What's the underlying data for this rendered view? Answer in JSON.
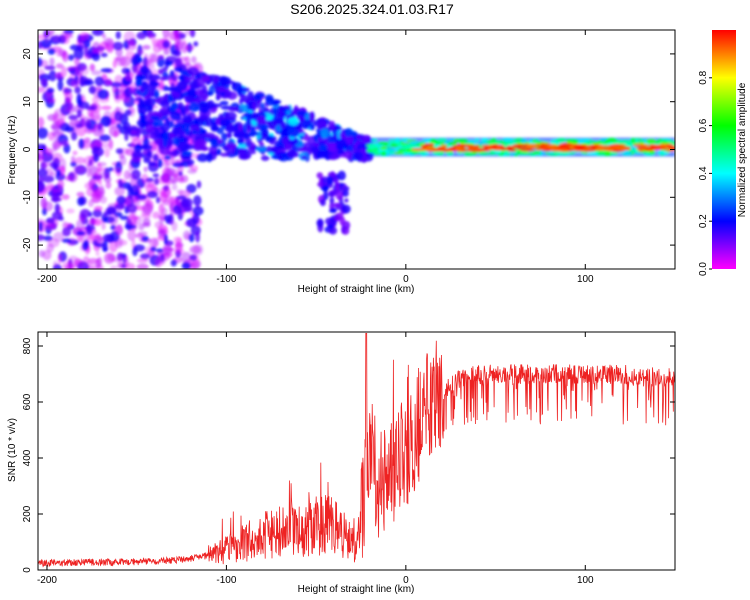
{
  "title": "S206.2025.324.01.03.R17",
  "chart_data": [
    {
      "type": "heatmap",
      "name": "spectrogram",
      "xlabel": "Height of straight line (km)",
      "ylabel": "Frequency (Hz)",
      "xlim": [
        -205,
        150
      ],
      "ylim": [
        -25,
        25
      ],
      "xticks": [
        -200,
        -100,
        0,
        100
      ],
      "yticks": [
        -20,
        -10,
        0,
        10,
        20
      ],
      "colorbar": {
        "label": "Normalized spectral amplitude",
        "range": [
          0,
          1
        ],
        "ticks": [
          0.0,
          0.2,
          0.4,
          0.6,
          0.8
        ],
        "colors": [
          "#ff00ff",
          "#0000ff",
          "#00ffff",
          "#00ff00",
          "#ffff00",
          "#ff0000"
        ]
      },
      "description_bands": [
        {
          "x": [
            -205,
            -120
          ],
          "freq_spread": 25,
          "amplitude": 0.15
        },
        {
          "x": [
            -120,
            -20
          ],
          "freq_spread": 10,
          "amplitude": 0.3
        },
        {
          "x": [
            -20,
            150
          ],
          "freq_center": 0.5,
          "amplitude": 0.6
        }
      ]
    },
    {
      "type": "line",
      "name": "snr",
      "xlabel": "Height of straight line (km)",
      "ylabel": "SNR (10 * v/v)",
      "xlim": [
        -205,
        150
      ],
      "ylim": [
        0,
        850
      ],
      "xticks": [
        -200,
        -100,
        0,
        100
      ],
      "yticks": [
        0,
        200,
        400,
        600,
        800
      ],
      "series": [
        {
          "name": "SNR",
          "color": "#ee2222",
          "x": [
            -205,
            -190,
            -175,
            -160,
            -145,
            -130,
            -115,
            -105,
            -95,
            -85,
            -75,
            -65,
            -55,
            -45,
            -38,
            -33,
            -28,
            -25,
            -22,
            -20,
            -18,
            -15,
            -10,
            -5,
            0,
            5,
            10,
            15,
            20,
            25,
            30,
            40,
            50,
            60,
            70,
            80,
            90,
            100,
            110,
            120,
            130,
            140,
            150
          ],
          "y": [
            25,
            25,
            28,
            28,
            30,
            35,
            45,
            60,
            85,
            110,
            130,
            140,
            150,
            160,
            155,
            110,
            80,
            150,
            300,
            500,
            400,
            300,
            330,
            380,
            420,
            480,
            560,
            610,
            640,
            660,
            680,
            700,
            700,
            700,
            700,
            700,
            700,
            700,
            700,
            700,
            690,
            690,
            690
          ]
        }
      ]
    }
  ]
}
